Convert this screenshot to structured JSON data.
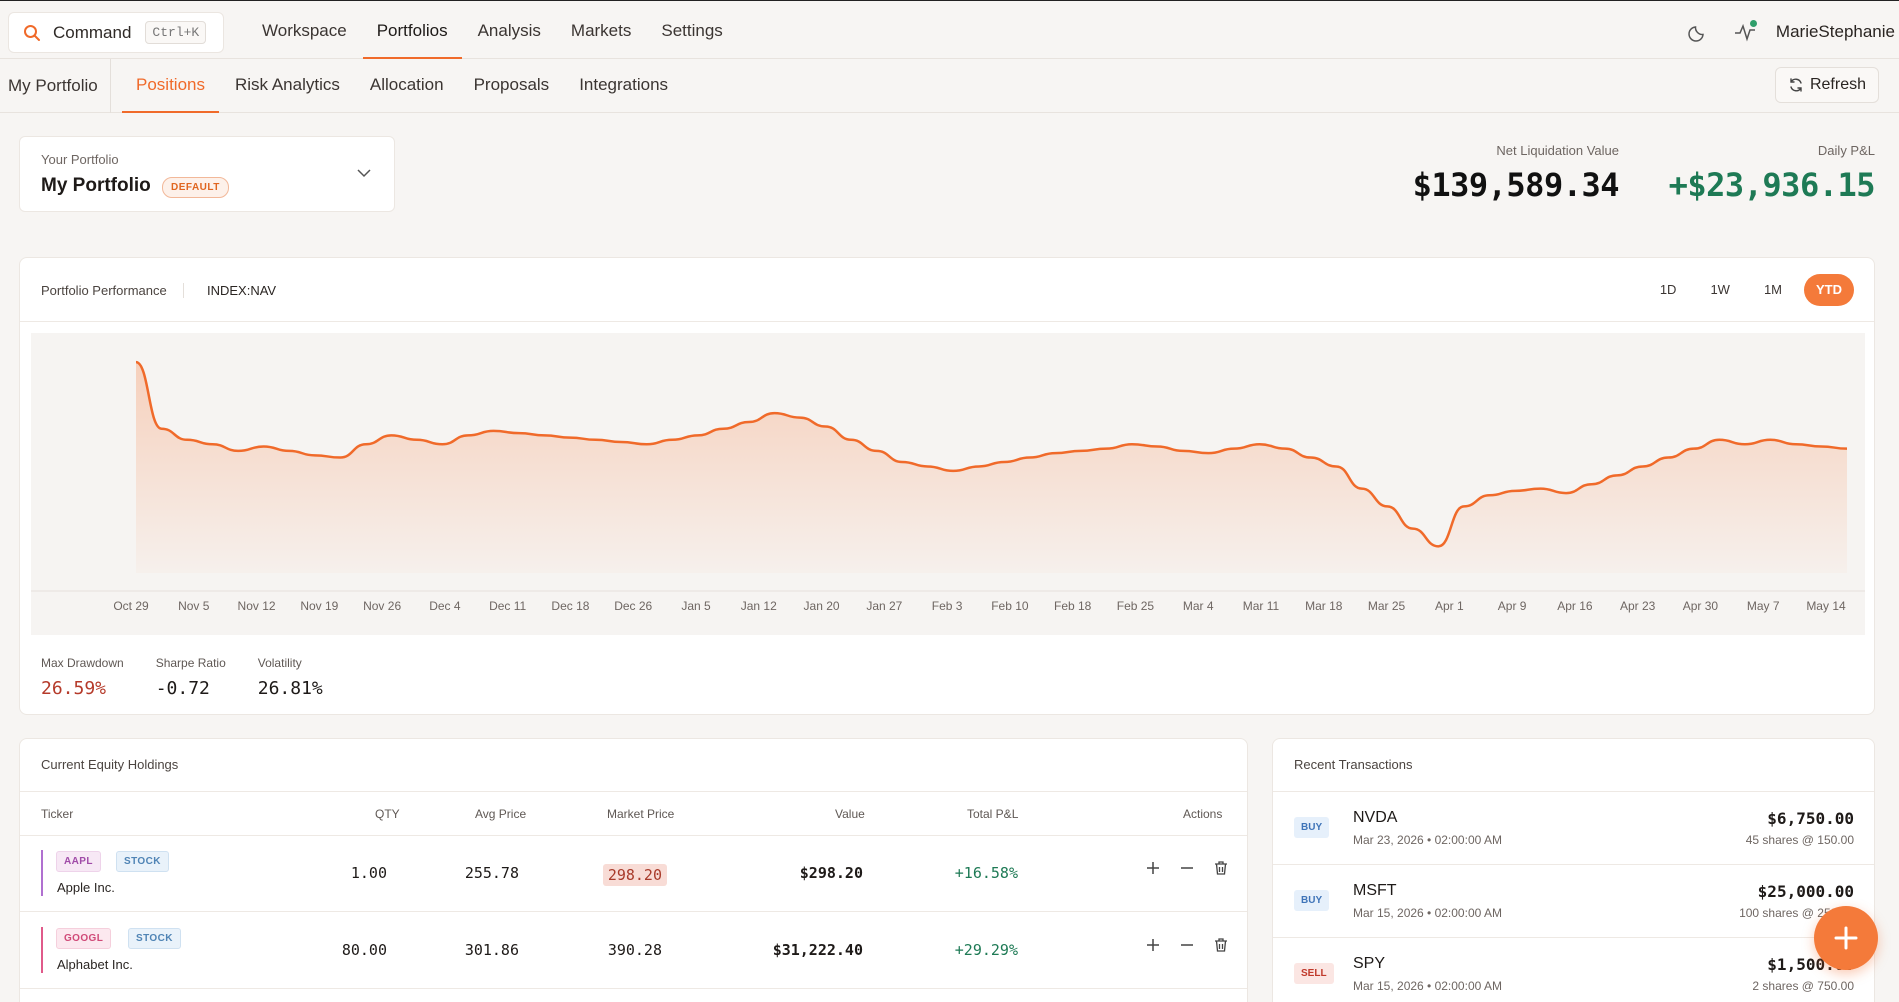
{
  "command": {
    "label": "Command",
    "shortcut": "Ctrl+K"
  },
  "main_nav": [
    {
      "label": "Workspace",
      "active": false
    },
    {
      "label": "Portfolios",
      "active": true
    },
    {
      "label": "Analysis",
      "active": false
    },
    {
      "label": "Markets",
      "active": false
    },
    {
      "label": "Settings",
      "active": false
    }
  ],
  "user": {
    "name": "MarieStephanie"
  },
  "sub_nav": {
    "crumb": "My Portfolio",
    "tabs": [
      {
        "label": "Positions",
        "active": true
      },
      {
        "label": "Risk Analytics",
        "active": false
      },
      {
        "label": "Allocation",
        "active": false
      },
      {
        "label": "Proposals",
        "active": false
      },
      {
        "label": "Integrations",
        "active": false
      }
    ],
    "refresh_label": "Refresh"
  },
  "portfolio_selector": {
    "caption": "Your Portfolio",
    "name": "My Portfolio",
    "badge": "DEFAULT"
  },
  "kpis": {
    "net_liquidation": {
      "label": "Net Liquidation Value",
      "value": "$139,589.34"
    },
    "daily_pnl": {
      "label": "Daily P&L",
      "value": "+$23,936.15"
    }
  },
  "performance": {
    "title": "Portfolio Performance",
    "symbol": "INDEX:NAV",
    "ranges": [
      {
        "label": "1D",
        "active": false
      },
      {
        "label": "1W",
        "active": false
      },
      {
        "label": "1M",
        "active": false
      },
      {
        "label": "YTD",
        "active": true
      }
    ],
    "stats": [
      {
        "label": "Max Drawdown",
        "value": "26.59%",
        "negative": true
      },
      {
        "label": "Sharpe Ratio",
        "value": "-0.72",
        "negative": false
      },
      {
        "label": "Volatility",
        "value": "26.81%",
        "negative": false
      }
    ]
  },
  "chart_data": {
    "type": "area",
    "title": "",
    "xlabel": "",
    "ylabel": "",
    "grid": false,
    "accent": "#f06a2a",
    "x_ticks": [
      "Oct 29",
      "Nov 5",
      "Nov 12",
      "Nov 19",
      "Nov 26",
      "Dec 4",
      "Dec 11",
      "Dec 18",
      "Dec 26",
      "Jan 5",
      "Jan 12",
      "Jan 20",
      "Jan 27",
      "Feb 3",
      "Feb 10",
      "Feb 18",
      "Feb 25",
      "Mar 4",
      "Mar 11",
      "Mar 18",
      "Mar 25",
      "Apr 1",
      "Apr 9",
      "Apr 16",
      "Apr 23",
      "Apr 30",
      "May 7",
      "May 14"
    ],
    "ylim": [
      0,
      100
    ],
    "series": [
      {
        "values": [
          95,
          65,
          60,
          58,
          55,
          57,
          55,
          53,
          52,
          58,
          62,
          60,
          58,
          62,
          64,
          63,
          62,
          61,
          60,
          59,
          58,
          60,
          62,
          65,
          68,
          72,
          70,
          66,
          60,
          55,
          50,
          48,
          46,
          48,
          50,
          52,
          54,
          55,
          56,
          58,
          57,
          55,
          54,
          56,
          58,
          56,
          52,
          48,
          38,
          30,
          20,
          12,
          30,
          35,
          37,
          38,
          36,
          40,
          44,
          48,
          52,
          56,
          60,
          58,
          60,
          58,
          57,
          56
        ]
      }
    ]
  },
  "holdings": {
    "title": "Current Equity Holdings",
    "columns": [
      "Ticker",
      "QTY",
      "Avg Price",
      "Market Price",
      "Value",
      "Total P&L",
      "Actions"
    ],
    "rows": [
      {
        "ticker": "AAPL",
        "type": "STOCK",
        "company": "Apple Inc.",
        "qty": "1.00",
        "avg_price": "255.78",
        "market_price": "298.20",
        "value": "$298.20",
        "pnl": "+16.58%"
      },
      {
        "ticker": "GOOGL",
        "type": "STOCK",
        "company": "Alphabet Inc.",
        "qty": "80.00",
        "avg_price": "301.86",
        "market_price": "390.28",
        "value": "$31,222.40",
        "pnl": "+29.29%"
      }
    ]
  },
  "transactions": {
    "title": "Recent Transactions",
    "rows": [
      {
        "side": "BUY",
        "symbol": "NVDA",
        "time": "Mar 23, 2026 • 02:00:00 AM",
        "amount": "$6,750.00",
        "detail": "45 shares @ 150.00"
      },
      {
        "side": "BUY",
        "symbol": "MSFT",
        "time": "Mar 15, 2026 • 02:00:00 AM",
        "amount": "$25,000.00",
        "detail": "100 shares @ 250.00"
      },
      {
        "side": "SELL",
        "symbol": "SPY",
        "time": "Mar 15, 2026 • 02:00:00 AM",
        "amount": "$1,500.00",
        "detail": "2 shares @ 750.00"
      }
    ]
  }
}
